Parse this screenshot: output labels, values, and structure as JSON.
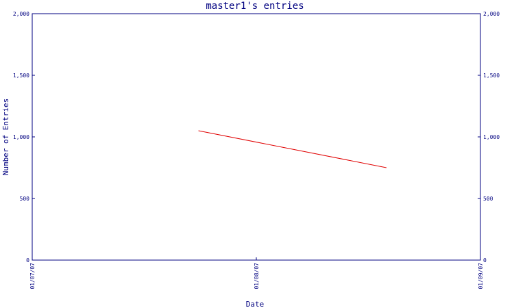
{
  "chart_data": {
    "type": "line",
    "title": "master1's entries",
    "xlabel": "Date",
    "ylabel": "Number of Entries",
    "x_categories": [
      "01/07/07",
      "01/08/07",
      "01/09/07"
    ],
    "ylim": [
      0,
      2000
    ],
    "y_ticks": [
      "0",
      "500",
      "1,000",
      "1,500",
      "2,000"
    ],
    "series": [
      {
        "points": [
          {
            "x": "2007-07-24",
            "y": 1050
          },
          {
            "x": "2007-08-19",
            "y": 750
          }
        ]
      }
    ],
    "grid": false,
    "legend": "none"
  },
  "colors": {
    "axis": "#000080",
    "series_line": "#e00000",
    "background": "#ffffff"
  }
}
